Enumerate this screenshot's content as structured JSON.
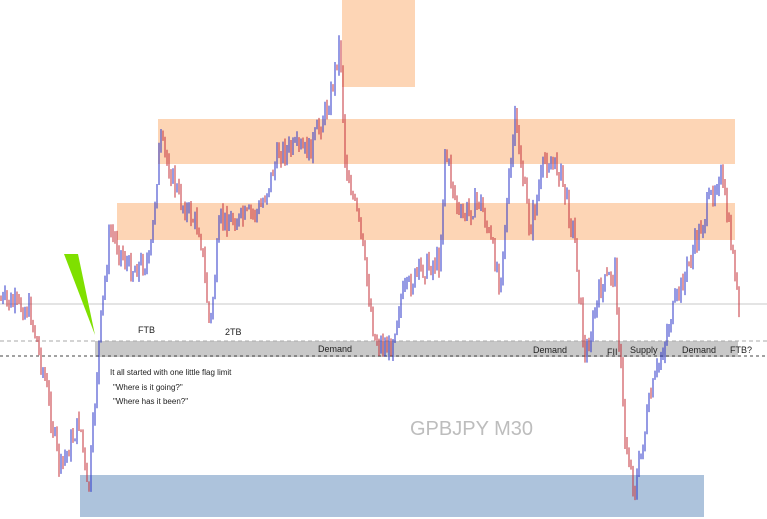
{
  "watermark": "GPBJPY M30",
  "labels": [
    "FTB",
    "2TB",
    "Demand",
    "Demand",
    "FII",
    "Supply",
    "Demand",
    "FTB?"
  ],
  "note": [
    "It all started with one little flag limit",
    "\"Where is it going?\"",
    "\"Where has it been?\""
  ]
}
